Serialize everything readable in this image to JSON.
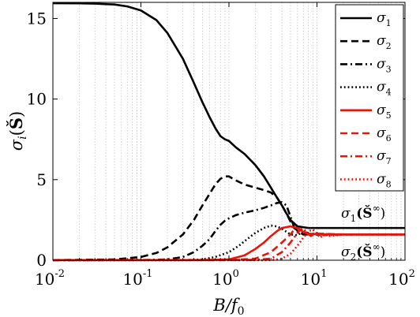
{
  "chart_data": {
    "type": "line",
    "xlabel": "B/f₀",
    "ylabel": "σᵢ(Š)",
    "xscale": "log",
    "xlim": [
      0.01,
      100
    ],
    "ylim": [
      0,
      16
    ],
    "grid": "x-minor-dotted",
    "legend_position": "top-right",
    "x_ticks": [
      {
        "base": "10",
        "exp": "-2"
      },
      {
        "base": "10",
        "exp": "-1"
      },
      {
        "base": "10",
        "exp": "0"
      },
      {
        "base": "10",
        "exp": "1"
      },
      {
        "base": "10",
        "exp": "2"
      }
    ],
    "y_ticks": [
      "0",
      "5",
      "10",
      "15"
    ],
    "series": [
      {
        "name": "σ1",
        "sub": "1",
        "color": "#000000",
        "dash": "solid",
        "points": [
          [
            0.01,
            15.95
          ],
          [
            0.02,
            15.94
          ],
          [
            0.03,
            15.92
          ],
          [
            0.05,
            15.87
          ],
          [
            0.07,
            15.75
          ],
          [
            0.1,
            15.5
          ],
          [
            0.15,
            14.9
          ],
          [
            0.2,
            14.1
          ],
          [
            0.3,
            12.5
          ],
          [
            0.4,
            11.0
          ],
          [
            0.5,
            9.8
          ],
          [
            0.6,
            8.9
          ],
          [
            0.7,
            8.2
          ],
          [
            0.8,
            7.7
          ],
          [
            0.9,
            7.5
          ],
          [
            1.0,
            7.4
          ],
          [
            1.2,
            7.0
          ],
          [
            1.5,
            6.6
          ],
          [
            2.0,
            5.9
          ],
          [
            2.5,
            5.2
          ],
          [
            3.0,
            4.5
          ],
          [
            3.5,
            3.9
          ],
          [
            4.0,
            3.4
          ],
          [
            4.5,
            2.9
          ],
          [
            5.0,
            2.5
          ],
          [
            6.0,
            2.1
          ],
          [
            8.0,
            2.0
          ],
          [
            20,
            2.0
          ],
          [
            100,
            2.0
          ]
        ]
      },
      {
        "name": "σ2",
        "sub": "2",
        "color": "#000000",
        "dash": "dashed",
        "points": [
          [
            0.01,
            0.01
          ],
          [
            0.05,
            0.05
          ],
          [
            0.1,
            0.2
          ],
          [
            0.15,
            0.45
          ],
          [
            0.2,
            0.8
          ],
          [
            0.3,
            1.6
          ],
          [
            0.4,
            2.5
          ],
          [
            0.5,
            3.4
          ],
          [
            0.6,
            4.1
          ],
          [
            0.7,
            4.7
          ],
          [
            0.8,
            5.05
          ],
          [
            0.9,
            5.2
          ],
          [
            1.0,
            5.2
          ],
          [
            1.2,
            4.95
          ],
          [
            1.5,
            4.7
          ],
          [
            2.0,
            4.5
          ],
          [
            2.5,
            4.35
          ],
          [
            3.0,
            4.2
          ],
          [
            3.5,
            3.9
          ],
          [
            4.0,
            3.4
          ],
          [
            4.5,
            2.9
          ],
          [
            5.0,
            2.4
          ],
          [
            5.5,
            2.0
          ],
          [
            6.0,
            1.85
          ],
          [
            7,
            1.75
          ],
          [
            10,
            1.6
          ],
          [
            100,
            1.6
          ]
        ]
      },
      {
        "name": "σ3",
        "sub": "3",
        "color": "#000000",
        "dash": "dashdot",
        "points": [
          [
            0.01,
            0.0
          ],
          [
            0.1,
            0.01
          ],
          [
            0.2,
            0.05
          ],
          [
            0.3,
            0.2
          ],
          [
            0.4,
            0.5
          ],
          [
            0.5,
            0.9
          ],
          [
            0.6,
            1.3
          ],
          [
            0.7,
            1.8
          ],
          [
            0.8,
            2.2
          ],
          [
            0.9,
            2.45
          ],
          [
            1.0,
            2.6
          ],
          [
            1.2,
            2.8
          ],
          [
            1.5,
            2.95
          ],
          [
            2.0,
            3.1
          ],
          [
            2.5,
            3.25
          ],
          [
            3.0,
            3.4
          ],
          [
            3.5,
            3.55
          ],
          [
            4.0,
            3.6
          ],
          [
            4.5,
            3.4
          ],
          [
            5.0,
            2.7
          ],
          [
            5.5,
            2.05
          ],
          [
            6.0,
            1.8
          ],
          [
            7,
            1.6
          ],
          [
            10,
            1.6
          ],
          [
            100,
            1.6
          ]
        ]
      },
      {
        "name": "σ4",
        "sub": "4",
        "color": "#000000",
        "dash": "dotted",
        "points": [
          [
            0.01,
            0.0
          ],
          [
            0.3,
            0.0
          ],
          [
            0.5,
            0.05
          ],
          [
            0.7,
            0.2
          ],
          [
            1.0,
            0.5
          ],
          [
            1.3,
            0.9
          ],
          [
            1.6,
            1.3
          ],
          [
            2.0,
            1.7
          ],
          [
            2.5,
            2.0
          ],
          [
            3.0,
            2.15
          ],
          [
            3.5,
            2.1
          ],
          [
            4.0,
            1.95
          ],
          [
            5.0,
            1.6
          ],
          [
            6.0,
            1.55
          ],
          [
            7.0,
            1.8
          ],
          [
            8.0,
            1.6
          ],
          [
            10,
            1.6
          ],
          [
            100,
            1.6
          ]
        ]
      },
      {
        "name": "σ5",
        "sub": "5",
        "color": "#e8140a",
        "dash": "solid",
        "points": [
          [
            0.01,
            0.01
          ],
          [
            0.5,
            0.01
          ],
          [
            1.0,
            0.05
          ],
          [
            1.5,
            0.3
          ],
          [
            2.0,
            0.7
          ],
          [
            2.5,
            1.1
          ],
          [
            3.0,
            1.5
          ],
          [
            3.5,
            1.8
          ],
          [
            4.0,
            2.0
          ],
          [
            5.0,
            2.1
          ],
          [
            6.0,
            2.0
          ],
          [
            7.0,
            1.75
          ],
          [
            8.0,
            1.65
          ],
          [
            10,
            1.62
          ],
          [
            20,
            1.6
          ],
          [
            100,
            1.6
          ]
        ]
      },
      {
        "name": "σ6",
        "sub": "6",
        "color": "#e8140a",
        "dash": "dashed",
        "points": [
          [
            0.01,
            0.01
          ],
          [
            1.0,
            0.01
          ],
          [
            2.0,
            0.1
          ],
          [
            3.0,
            0.5
          ],
          [
            4.0,
            1.1
          ],
          [
            5.0,
            1.6
          ],
          [
            5.5,
            1.9
          ],
          [
            6.0,
            2.0
          ],
          [
            7.0,
            1.8
          ],
          [
            8.0,
            1.6
          ],
          [
            10,
            1.65
          ],
          [
            20,
            1.6
          ],
          [
            100,
            1.6
          ]
        ]
      },
      {
        "name": "σ7",
        "sub": "7",
        "color": "#e8140a",
        "dash": "dashdot",
        "points": [
          [
            0.01,
            0.01
          ],
          [
            2.0,
            0.02
          ],
          [
            3.0,
            0.1
          ],
          [
            4.0,
            0.5
          ],
          [
            5.0,
            1.1
          ],
          [
            6.0,
            1.7
          ],
          [
            6.8,
            2.0
          ],
          [
            7.5,
            1.8
          ],
          [
            8.5,
            1.5
          ],
          [
            10,
            1.7
          ],
          [
            12,
            1.55
          ],
          [
            20,
            1.6
          ],
          [
            100,
            1.6
          ]
        ]
      },
      {
        "name": "σ8",
        "sub": "8",
        "color": "#e8140a",
        "dash": "dotted",
        "points": [
          [
            0.01,
            0.0
          ],
          [
            3.0,
            0.0
          ],
          [
            4.0,
            0.1
          ],
          [
            5.0,
            0.4
          ],
          [
            6.0,
            0.9
          ],
          [
            7.0,
            1.4
          ],
          [
            8.0,
            1.8
          ],
          [
            9.0,
            1.9
          ],
          [
            10,
            1.6
          ],
          [
            11,
            1.4
          ],
          [
            12,
            1.7
          ],
          [
            14,
            1.5
          ],
          [
            20,
            1.6
          ],
          [
            100,
            1.6
          ]
        ]
      }
    ],
    "annotations": [
      {
        "text": "σ₁(Š^∞)",
        "main": "σ",
        "sub": "1",
        "arg": "(Š",
        "sup": "∞",
        "close": ")"
      },
      {
        "text": "σ₂(Š^∞)",
        "main": "σ",
        "sub": "2",
        "arg": "(Š",
        "sup": "∞",
        "close": ")"
      }
    ]
  }
}
